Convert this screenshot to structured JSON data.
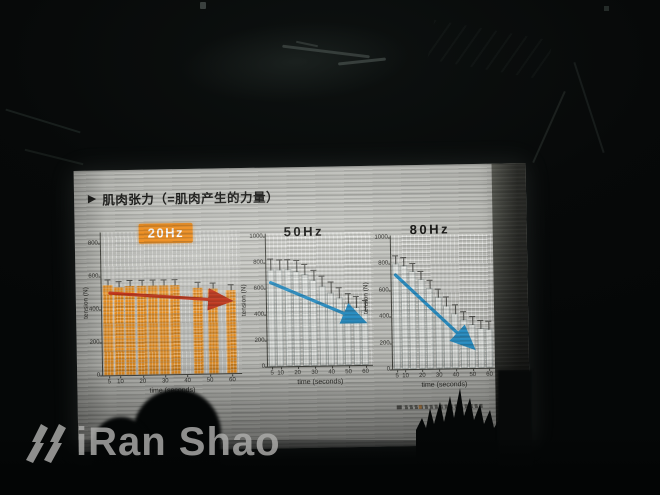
{
  "slide": {
    "title_bullet": "▶",
    "title": "肌肉张力（=肌肉产生的力量）"
  },
  "watermark": {
    "text": "iRan Shao"
  },
  "colors": {
    "slide_bg": "#c9cac5",
    "accent_orange": "#ef8e1e",
    "arrow_red": "#c8371b",
    "arrow_blue": "#2a95cd",
    "watermark_gray": "#adadab"
  },
  "chart_data": [
    {
      "type": "bar",
      "title": "20Hz",
      "title_style": "white-on-orange-badge",
      "xlabel": "time (seconds)",
      "ylabel": "tension (N)",
      "ylim": [
        0,
        800
      ],
      "yticks": [
        0,
        200,
        400,
        600,
        800
      ],
      "xticks": [
        5,
        10,
        20,
        30,
        40,
        50,
        60
      ],
      "x": [
        5,
        10,
        15,
        20,
        25,
        30,
        35,
        45,
        52,
        60
      ],
      "values": [
        545,
        532,
        540,
        542,
        538,
        542,
        540,
        522,
        515,
        505
      ],
      "error_plus": 35,
      "bar_color": "#f0931f",
      "trend_arrow": {
        "color": "#c8371b",
        "from": [
          6,
          498
        ],
        "to": [
          59,
          440
        ]
      }
    },
    {
      "type": "bar",
      "title": "50Hz",
      "title_style": "plain",
      "xlabel": "time (seconds)",
      "ylabel": "tension (N)",
      "ylim": [
        0,
        1000
      ],
      "yticks": [
        0,
        200,
        400,
        600,
        800,
        1000
      ],
      "xticks": [
        5,
        10,
        20,
        30,
        40,
        50,
        60
      ],
      "x": [
        5,
        10,
        15,
        20,
        25,
        30,
        35,
        40,
        45,
        50,
        55,
        60
      ],
      "values": [
        750,
        745,
        748,
        735,
        705,
        660,
        612,
        565,
        520,
        480,
        450,
        425
      ],
      "error_plus": 85,
      "bar_color": "#e7eae6",
      "trend_arrow": {
        "color": "#2a95cd",
        "from": [
          5,
          645
        ],
        "to": [
          59,
          335
        ]
      }
    },
    {
      "type": "bar",
      "title": "80Hz",
      "title_style": "plain",
      "xlabel": "time (seconds)",
      "ylabel": "tension (N)",
      "ylim": [
        0,
        1000
      ],
      "yticks": [
        0,
        200,
        400,
        600,
        800,
        1000
      ],
      "xticks": [
        5,
        10,
        20,
        30,
        40,
        50,
        60
      ],
      "x": [
        5,
        10,
        15,
        20,
        25,
        30,
        35,
        40,
        45,
        50,
        55,
        60
      ],
      "values": [
        800,
        785,
        740,
        680,
        615,
        545,
        480,
        420,
        370,
        330,
        300,
        295
      ],
      "error_plus": 70,
      "bar_color": "#e7eae6",
      "trend_arrow": {
        "color": "#2a95cd",
        "from": [
          5,
          715
        ],
        "to": [
          50,
          160
        ]
      }
    }
  ]
}
